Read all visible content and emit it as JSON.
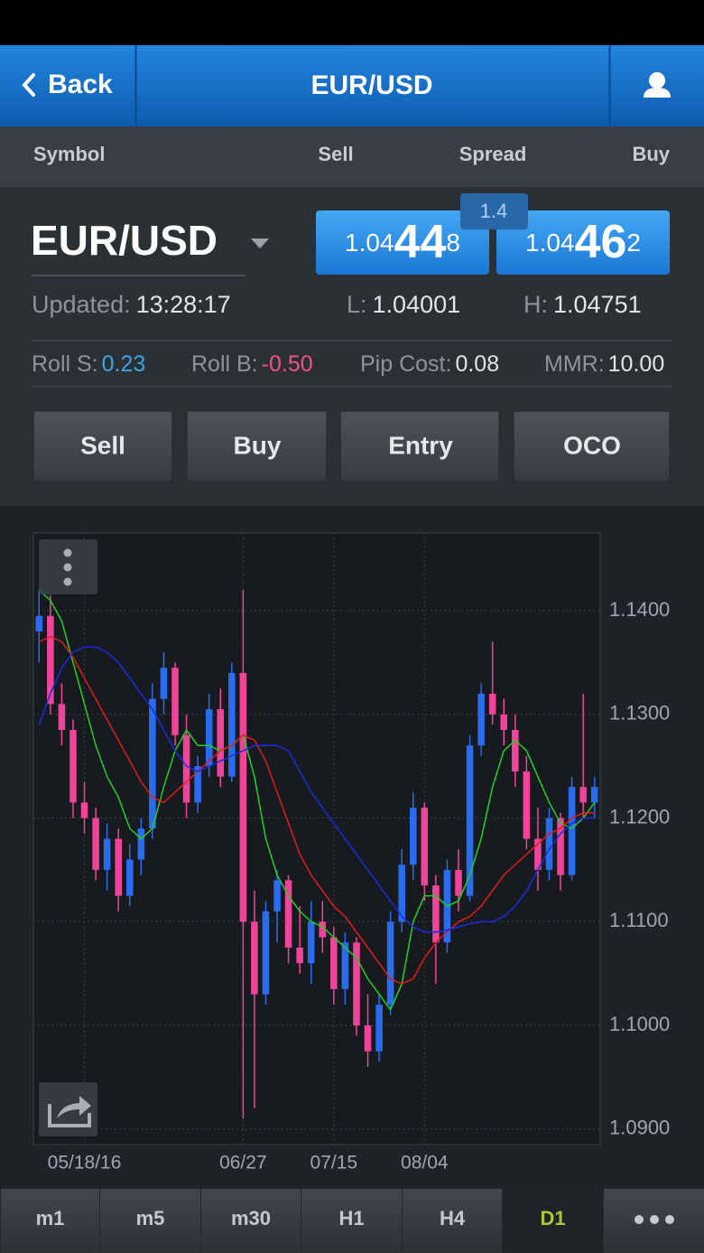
{
  "nav": {
    "back": "Back",
    "title": "EUR/USD"
  },
  "columns": [
    "Symbol",
    "Sell",
    "Spread",
    "Buy"
  ],
  "quote": {
    "symbol": "EUR/USD",
    "sell": {
      "big": "1.04",
      "pips": "44",
      "frac": "8"
    },
    "spread": "1.4",
    "buy": {
      "big": "1.04",
      "pips": "46",
      "frac": "2"
    }
  },
  "stats": {
    "updated_label": "Updated:",
    "updated": "13:28:17",
    "low_label": "L:",
    "low": "1.04001",
    "high_label": "H:",
    "high": "1.04751"
  },
  "rolls": [
    {
      "label": "Roll S:",
      "value": "0.23"
    },
    {
      "label": "Roll B:",
      "value": "-0.50"
    },
    {
      "label": "Pip Cost:",
      "value": "0.08"
    },
    {
      "label": "MMR:",
      "value": "10.00"
    }
  ],
  "actions": [
    "Sell",
    "Buy",
    "Entry",
    "OCO"
  ],
  "chart": {
    "type": "candlestick",
    "up_color": "#2a6cf0",
    "down_color": "#f0449a",
    "categories": [
      null,
      null,
      null,
      null,
      "05/18/16",
      null,
      null,
      null,
      null,
      null,
      null,
      null,
      null,
      null,
      null,
      null,
      null,
      null,
      "06/27",
      null,
      null,
      null,
      null,
      null,
      null,
      null,
      "07/15",
      null,
      null,
      null,
      null,
      null,
      null,
      null,
      "08/04",
      null,
      null,
      null,
      null,
      null,
      null,
      null,
      null,
      null,
      null,
      null,
      null,
      null,
      null,
      null
    ],
    "open": [
      1.138,
      1.1395,
      1.131,
      1.1285,
      1.1215,
      1.12,
      1.115,
      1.118,
      1.1125,
      1.116,
      1.119,
      1.1315,
      1.1345,
      1.128,
      1.1215,
      1.125,
      1.1305,
      1.124,
      1.134,
      1.11,
      1.103,
      1.111,
      1.114,
      1.1075,
      1.106,
      1.11,
      1.1085,
      1.1035,
      1.108,
      1.1,
      1.0975,
      1.102,
      1.11,
      1.1155,
      1.121,
      1.1135,
      1.108,
      1.115,
      1.1125,
      1.127,
      1.132,
      1.13,
      1.1285,
      1.1245,
      1.118,
      1.115,
      1.12,
      1.1145,
      1.123,
      1.1215
    ],
    "high": [
      1.142,
      1.1415,
      1.133,
      1.1295,
      1.1235,
      1.121,
      1.1195,
      1.119,
      1.1175,
      1.12,
      1.133,
      1.136,
      1.135,
      1.13,
      1.126,
      1.132,
      1.1325,
      1.135,
      1.142,
      1.113,
      1.112,
      1.115,
      1.1145,
      1.1115,
      1.112,
      1.112,
      1.1095,
      1.109,
      1.1085,
      1.103,
      1.103,
      1.111,
      1.117,
      1.1225,
      1.1215,
      1.1145,
      1.116,
      1.117,
      1.128,
      1.133,
      1.137,
      1.1315,
      1.13,
      1.126,
      1.121,
      1.121,
      1.1205,
      1.124,
      1.132,
      1.124
    ],
    "low": [
      1.135,
      1.13,
      1.127,
      1.12,
      1.1185,
      1.114,
      1.113,
      1.111,
      1.1115,
      1.1145,
      1.118,
      1.13,
      1.127,
      1.12,
      1.1205,
      1.124,
      1.123,
      1.1235,
      1.091,
      1.092,
      1.102,
      1.108,
      1.106,
      1.105,
      1.104,
      1.107,
      1.102,
      1.102,
      1.099,
      1.096,
      1.0965,
      1.101,
      1.109,
      1.114,
      1.112,
      1.104,
      1.107,
      1.111,
      1.112,
      1.126,
      1.129,
      1.127,
      1.123,
      1.117,
      1.113,
      1.114,
      1.113,
      1.114,
      1.12,
      1.12
    ],
    "close": [
      1.1395,
      1.131,
      1.1285,
      1.1215,
      1.12,
      1.115,
      1.118,
      1.1125,
      1.116,
      1.119,
      1.1315,
      1.1345,
      1.128,
      1.1215,
      1.125,
      1.1305,
      1.124,
      1.134,
      1.11,
      1.103,
      1.111,
      1.114,
      1.1075,
      1.106,
      1.11,
      1.1085,
      1.1035,
      1.108,
      1.1,
      1.0975,
      1.102,
      1.11,
      1.1155,
      1.121,
      1.1135,
      1.108,
      1.115,
      1.1125,
      1.127,
      1.132,
      1.13,
      1.1285,
      1.1245,
      1.118,
      1.115,
      1.12,
      1.1145,
      1.123,
      1.1215,
      1.123
    ],
    "lines": [
      {
        "color": "#1fd21f",
        "values": [
          1.142,
          1.141,
          1.139,
          1.135,
          1.131,
          1.127,
          1.124,
          1.122,
          1.119,
          1.118,
          1.119,
          1.123,
          1.1265,
          1.1285,
          1.127,
          1.127,
          1.1265,
          1.127,
          1.128,
          1.124,
          1.118,
          1.1145,
          1.1125,
          1.111,
          1.11,
          1.1095,
          1.1085,
          1.1075,
          1.1065,
          1.1045,
          1.103,
          1.1015,
          1.104,
          1.11,
          1.1125,
          1.1125,
          1.1115,
          1.112,
          1.1145,
          1.118,
          1.123,
          1.1265,
          1.1275,
          1.1265,
          1.124,
          1.1215,
          1.1195,
          1.119,
          1.12,
          1.1215
        ]
      },
      {
        "color": "#e21b1b",
        "values": [
          1.137,
          1.1375,
          1.137,
          1.1355,
          1.1335,
          1.1315,
          1.1295,
          1.1275,
          1.1255,
          1.1235,
          1.122,
          1.1215,
          1.1225,
          1.1235,
          1.1245,
          1.1255,
          1.1265,
          1.127,
          1.128,
          1.1275,
          1.1255,
          1.1225,
          1.1195,
          1.1165,
          1.1145,
          1.113,
          1.1115,
          1.1105,
          1.109,
          1.1075,
          1.106,
          1.1045,
          1.104,
          1.1045,
          1.1065,
          1.108,
          1.109,
          1.11,
          1.1105,
          1.1115,
          1.113,
          1.1145,
          1.1155,
          1.1165,
          1.1175,
          1.1185,
          1.119,
          1.12,
          1.1205,
          1.1205
        ]
      },
      {
        "color": "#1a2be0",
        "values": [
          1.129,
          1.132,
          1.1345,
          1.136,
          1.1365,
          1.1365,
          1.136,
          1.135,
          1.1335,
          1.132,
          1.1305,
          1.1285,
          1.1265,
          1.125,
          1.1245,
          1.125,
          1.1255,
          1.126,
          1.1265,
          1.127,
          1.127,
          1.127,
          1.1265,
          1.1245,
          1.1225,
          1.121,
          1.1195,
          1.118,
          1.1165,
          1.115,
          1.1135,
          1.112,
          1.1105,
          1.1095,
          1.109,
          1.109,
          1.1092,
          1.1095,
          1.1098,
          1.11,
          1.11,
          1.1105,
          1.1115,
          1.113,
          1.115,
          1.117,
          1.1185,
          1.1195,
          1.12,
          1.12
        ]
      }
    ],
    "ylim": [
      1.0885,
      1.1475
    ],
    "yticks": [
      {
        "value": 1.14,
        "label": "1.1400"
      },
      {
        "value": 1.13,
        "label": "1.1300"
      },
      {
        "value": 1.12,
        "label": "1.1200"
      },
      {
        "value": 1.11,
        "label": "1.1100"
      },
      {
        "value": 1.1,
        "label": "1.1000"
      },
      {
        "value": 1.09,
        "label": "1.0900"
      }
    ]
  },
  "timeframes": [
    "m1",
    "m5",
    "m30",
    "H1",
    "H4",
    "D1"
  ],
  "active_timeframe": 5
}
